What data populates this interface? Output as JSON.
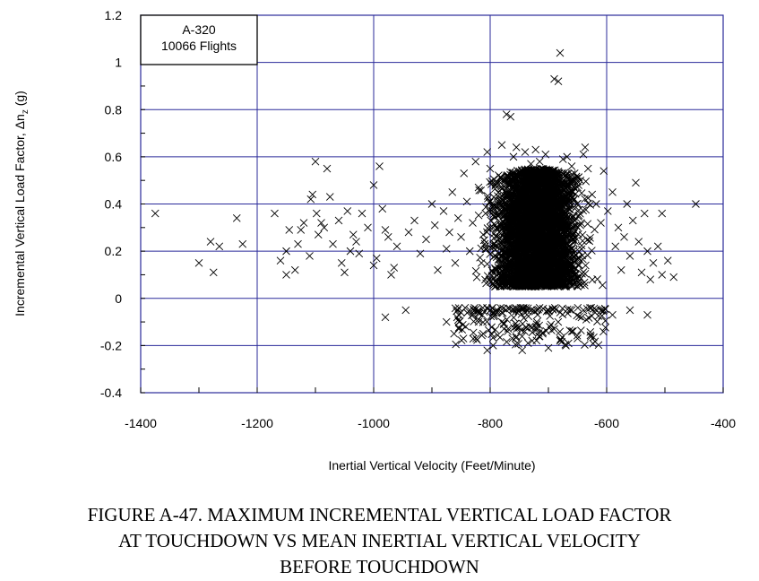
{
  "chart_data": {
    "type": "scatter",
    "marker": "x",
    "xlabel": "Inertial Vertical Velocity (Feet/Minute)",
    "ylabel": "Incremental Vertical Load Factor, Δn",
    "ylabel_sub": "z",
    "ylabel_unit": " (g)",
    "xlim": [
      -1400,
      -400
    ],
    "ylim": [
      -0.4,
      1.2
    ],
    "xticks": [
      "-1400",
      "-1200",
      "-1000",
      "-800",
      "-600",
      "-400"
    ],
    "yticks": [
      "1.2",
      "1",
      "0.8",
      "0.6",
      "0.4",
      "0.2",
      "0",
      "-0.2",
      "-0.4"
    ],
    "grid": true,
    "legend": {
      "position": "top-left",
      "lines": [
        "A-320",
        "10066 Flights"
      ]
    },
    "colors": {
      "grid": "#2a2a9a",
      "marker": "#000000"
    },
    "series": [
      {
        "points": [
          [
            -1375,
            0.36
          ],
          [
            -1300,
            0.15
          ],
          [
            -1280,
            0.24
          ],
          [
            -1275,
            0.11
          ],
          [
            -1265,
            0.22
          ],
          [
            -1235,
            0.34
          ],
          [
            -1225,
            0.23
          ],
          [
            -1170,
            0.36
          ],
          [
            -1160,
            0.16
          ],
          [
            -1150,
            0.2
          ],
          [
            -1150,
            0.1
          ],
          [
            -1145,
            0.29
          ],
          [
            -1135,
            0.12
          ],
          [
            -1130,
            0.23
          ],
          [
            -1125,
            0.29
          ],
          [
            -1120,
            0.32
          ],
          [
            -1110,
            0.18
          ],
          [
            -1108,
            0.42
          ],
          [
            -1105,
            0.44
          ],
          [
            -1100,
            0.58
          ],
          [
            -1098,
            0.36
          ],
          [
            -1095,
            0.27
          ],
          [
            -1090,
            0.32
          ],
          [
            -1085,
            0.3
          ],
          [
            -1080,
            0.55
          ],
          [
            -1075,
            0.43
          ],
          [
            -1070,
            0.23
          ],
          [
            -1060,
            0.33
          ],
          [
            -1055,
            0.15
          ],
          [
            -1050,
            0.11
          ],
          [
            -1045,
            0.37
          ],
          [
            -1040,
            0.2
          ],
          [
            -1035,
            0.27
          ],
          [
            -1030,
            0.24
          ],
          [
            -1025,
            0.19
          ],
          [
            -1020,
            0.36
          ],
          [
            -1010,
            0.3
          ],
          [
            -1000,
            0.48
          ],
          [
            -995,
            0.17
          ],
          [
            -990,
            0.56
          ],
          [
            -985,
            0.38
          ],
          [
            -980,
            0.29
          ],
          [
            -975,
            0.26
          ],
          [
            -970,
            0.1
          ],
          [
            -965,
            0.13
          ],
          [
            -980,
            -0.08
          ],
          [
            -945,
            -0.05
          ],
          [
            -835,
            -0.05
          ],
          [
            -1000,
            0.14
          ],
          [
            -960,
            0.22
          ],
          [
            -940,
            0.28
          ],
          [
            -930,
            0.33
          ],
          [
            -920,
            0.19
          ],
          [
            -910,
            0.25
          ],
          [
            -900,
            0.4
          ],
          [
            -895,
            0.31
          ],
          [
            -890,
            0.12
          ],
          [
            -880,
            0.37
          ],
          [
            -875,
            0.21
          ],
          [
            -870,
            0.28
          ],
          [
            -865,
            0.45
          ],
          [
            -860,
            0.15
          ],
          [
            -855,
            0.34
          ],
          [
            -850,
            0.26
          ],
          [
            -845,
            0.53
          ],
          [
            -840,
            0.41
          ],
          [
            -835,
            0.2
          ],
          [
            -830,
            0.32
          ],
          [
            -825,
            0.58
          ],
          [
            -820,
            0.47
          ],
          [
            -815,
            0.15
          ],
          [
            -812,
            0.27
          ],
          [
            -808,
            0.36
          ],
          [
            -805,
            0.62
          ],
          [
            -800,
            0.55
          ],
          [
            -795,
            0.3
          ],
          [
            -790,
            0.42
          ],
          [
            -785,
            0.19
          ],
          [
            -780,
            0.65
          ],
          [
            -775,
            0.5
          ],
          [
            -772,
            0.78
          ],
          [
            -765,
            0.77
          ],
          [
            -760,
            0.6
          ],
          [
            -755,
            0.64
          ],
          [
            -748,
            0.35
          ],
          [
            -740,
            0.62
          ],
          [
            -730,
            0.57
          ],
          [
            -722,
            0.63
          ],
          [
            -715,
            0.58
          ],
          [
            -705,
            0.61
          ],
          [
            -695,
            0.52
          ],
          [
            -690,
            0.93
          ],
          [
            -683,
            0.92
          ],
          [
            -680,
            1.04
          ],
          [
            -675,
            0.59
          ],
          [
            -668,
            0.6
          ],
          [
            -660,
            0.56
          ],
          [
            -655,
            0.53
          ],
          [
            -650,
            0.47
          ],
          [
            -645,
            0.5
          ],
          [
            -640,
            0.61
          ],
          [
            -637,
            0.64
          ],
          [
            -632,
            0.55
          ],
          [
            -625,
            0.44
          ],
          [
            -618,
            0.4
          ],
          [
            -610,
            0.32
          ],
          [
            -605,
            0.54
          ],
          [
            -598,
            0.37
          ],
          [
            -590,
            0.45
          ],
          [
            -585,
            0.22
          ],
          [
            -580,
            0.3
          ],
          [
            -575,
            0.12
          ],
          [
            -570,
            0.26
          ],
          [
            -565,
            0.4
          ],
          [
            -560,
            0.18
          ],
          [
            -555,
            0.33
          ],
          [
            -550,
            0.49
          ],
          [
            -545,
            0.24
          ],
          [
            -540,
            0.11
          ],
          [
            -535,
            0.36
          ],
          [
            -530,
            0.2
          ],
          [
            -525,
            0.08
          ],
          [
            -520,
            0.15
          ],
          [
            -512,
            0.22
          ],
          [
            -505,
            0.1
          ],
          [
            -495,
            0.16
          ],
          [
            -485,
            0.09
          ],
          [
            -447,
            0.4
          ],
          [
            -505,
            0.36
          ],
          [
            -530,
            -0.07
          ],
          [
            -560,
            -0.05
          ],
          [
            -590,
            -0.07
          ],
          [
            -605,
            -0.05
          ],
          [
            -620,
            -0.06
          ],
          [
            -635,
            -0.09
          ],
          [
            -650,
            -0.17
          ],
          [
            -660,
            -0.14
          ],
          [
            -670,
            -0.2
          ],
          [
            -680,
            -0.18
          ],
          [
            -690,
            -0.13
          ],
          [
            -700,
            -0.21
          ],
          [
            -710,
            -0.15
          ],
          [
            -720,
            -0.1
          ],
          [
            -728,
            -0.18
          ],
          [
            -735,
            -0.19
          ],
          [
            -745,
            -0.22
          ],
          [
            -755,
            -0.12
          ],
          [
            -762,
            -0.17
          ],
          [
            -770,
            -0.14
          ],
          [
            -780,
            -0.1
          ],
          [
            -788,
            -0.05
          ],
          [
            -795,
            -0.2
          ],
          [
            -805,
            -0.22
          ],
          [
            -812,
            -0.15
          ],
          [
            -820,
            -0.1
          ],
          [
            -830,
            -0.07
          ],
          [
            -842,
            -0.12
          ],
          [
            -850,
            -0.06
          ],
          [
            -862,
            -0.15
          ],
          [
            -875,
            -0.1
          ],
          [
            -700,
            -0.05
          ],
          [
            -720,
            -0.05
          ],
          [
            -740,
            -0.06
          ],
          [
            -760,
            -0.05
          ],
          [
            -780,
            -0.06
          ],
          [
            -800,
            -0.05
          ],
          [
            -820,
            -0.05
          ],
          [
            -660,
            -0.05
          ],
          [
            -680,
            -0.06
          ],
          [
            -640,
            -0.05
          ]
        ],
        "cluster": {
          "x_center": -720,
          "x_spread": 100,
          "y_min": 0.05,
          "y_top": 0.55,
          "count": 4200,
          "extra_low": {
            "x_min": -860,
            "x_max": -600,
            "y_min": -0.2,
            "y_max": -0.04,
            "count": 180
          }
        }
      }
    ]
  },
  "caption": {
    "line1": "FIGURE A-47.  MAXIMUM INCREMENTAL VERTICAL LOAD FACTOR",
    "line2": "AT TOUCHDOWN VS MEAN INERTIAL VERTICAL VELOCITY",
    "line3": "BEFORE TOUCHDOWN"
  }
}
